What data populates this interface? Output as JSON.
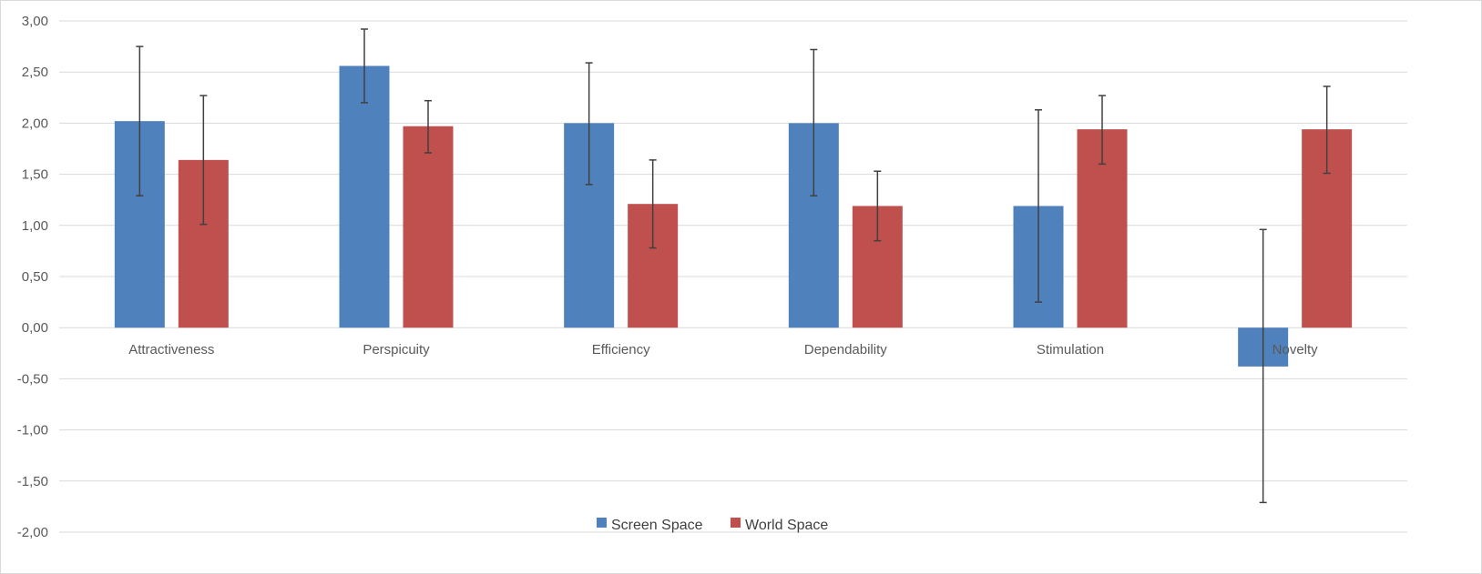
{
  "chart_data": {
    "type": "bar",
    "categories": [
      "Attractiveness",
      "Perspicuity",
      "Efficiency",
      "Dependability",
      "Stimulation",
      "Novelty"
    ],
    "series": [
      {
        "name": "Screen Space",
        "color": "#4f81bd",
        "values": [
          2.02,
          2.56,
          2.0,
          2.0,
          1.19,
          -0.38
        ],
        "error_low": [
          1.29,
          2.2,
          1.4,
          1.29,
          0.25,
          -1.71
        ],
        "error_high": [
          2.75,
          2.92,
          2.59,
          2.72,
          2.13,
          0.96
        ]
      },
      {
        "name": "World Space",
        "color": "#c0504d",
        "values": [
          1.64,
          1.97,
          1.21,
          1.19,
          1.94,
          1.94
        ],
        "error_low": [
          1.01,
          1.71,
          0.78,
          0.85,
          1.6,
          1.51
        ],
        "error_high": [
          2.27,
          2.22,
          1.64,
          1.53,
          2.27,
          2.36
        ]
      }
    ],
    "y_ticks": [
      "3,00",
      "2,50",
      "2,00",
      "1,50",
      "1,00",
      "0,50",
      "0,00",
      "-0,50",
      "-1,00",
      "-1,50",
      "-2,00"
    ],
    "ylim": [
      -2,
      3
    ],
    "grid": true,
    "legend_position": "bottom",
    "title": "",
    "xlabel": "",
    "ylabel": ""
  }
}
